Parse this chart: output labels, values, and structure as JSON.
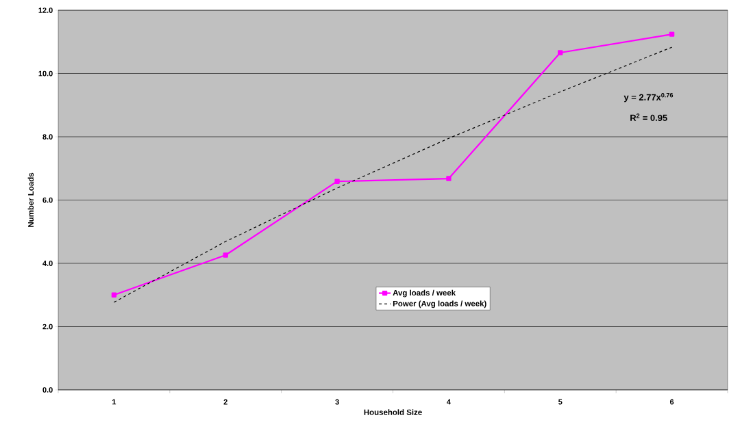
{
  "chart_data": {
    "type": "line",
    "xlabel": "Household Size",
    "ylabel": "Number Loads",
    "categories": [
      "1",
      "2",
      "3",
      "4",
      "5",
      "6"
    ],
    "series": [
      {
        "name": "Avg loads / week",
        "color": "#ff00ff",
        "values": [
          3.0,
          4.26,
          6.59,
          6.68,
          10.66,
          11.24
        ],
        "marker": "square",
        "line_style": "solid"
      },
      {
        "name": "Power (Avg loads / week)",
        "color": "#000000",
        "values": [
          2.77,
          4.69,
          6.38,
          7.95,
          9.42,
          10.83
        ],
        "marker": "none",
        "line_style": "dashed"
      }
    ],
    "ylim": [
      0,
      12
    ],
    "yticks": [
      {
        "value": 0,
        "label": "0.0"
      },
      {
        "value": 2,
        "label": "2.0"
      },
      {
        "value": 4,
        "label": "4.0"
      },
      {
        "value": 6,
        "label": "6.0"
      },
      {
        "value": 8,
        "label": "8.0"
      },
      {
        "value": 10,
        "label": "10.0"
      },
      {
        "value": 12,
        "label": "12.0"
      }
    ],
    "grid": "y",
    "legend": "bottom",
    "annotations": [
      "y = 2.77x$^{0.76}$",
      "R$^{2}$ = 0.95"
    ]
  }
}
